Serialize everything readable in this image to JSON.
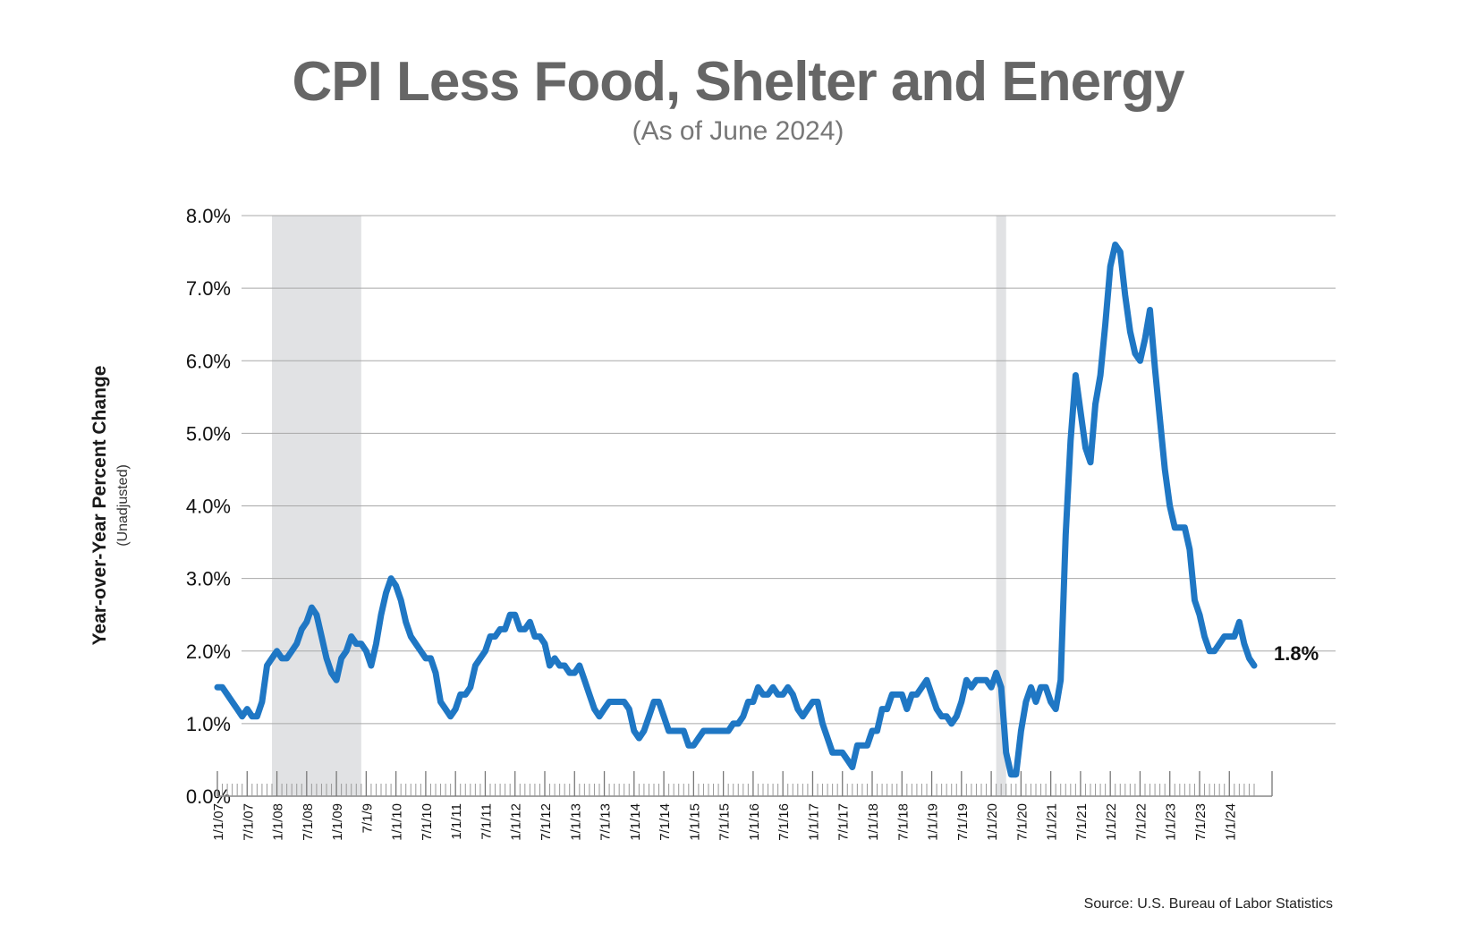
{
  "title": "CPI Less Food, Shelter and Energy",
  "subtitle": "(As of June 2024)",
  "source": "Source: U.S. Bureau of Labor Statistics",
  "colors": {
    "line": "#1f77c4",
    "recession": "#e1e2e4",
    "grid": "#a8a8a8",
    "title": "#666666"
  },
  "chart_data": {
    "type": "line",
    "title": "CPI Less Food, Shelter and Energy",
    "subtitle": "(As of June 2024)",
    "ylabel": "Year-over-Year Percent Change",
    "ylabel_sub": "(Unadjusted)",
    "ylim": [
      0,
      8
    ],
    "yticks": [
      "0.0%",
      "1.0%",
      "2.0%",
      "3.0%",
      "4.0%",
      "5.0%",
      "6.0%",
      "7.0%",
      "8.0%"
    ],
    "xlim": [
      "2007-01",
      "2024-06"
    ],
    "xticks": [
      "1/1/07",
      "7/1/07",
      "1/1/08",
      "7/1/08",
      "1/1/09",
      "7/1/9",
      "1/1/10",
      "7/1/10",
      "1/1/11",
      "7/1/11",
      "1/1/12",
      "7/1/12",
      "1/1/13",
      "7/1/13",
      "1/1/14",
      "7/1/14",
      "1/1/15",
      "7/1/15",
      "1/1/16",
      "7/1/16",
      "1/1/17",
      "7/1/17",
      "1/1/18",
      "7/1/18",
      "1/1/19",
      "7/1/19",
      "1/1/20",
      "7/1/20",
      "1/1/21",
      "7/1/21",
      "1/1/22",
      "7/1/22",
      "1/1/23",
      "7/1/23",
      "1/1/24"
    ],
    "grid": true,
    "recessions": [
      [
        "2007-12",
        "2009-06"
      ],
      [
        "2020-02",
        "2020-04"
      ]
    ],
    "end_label": "1.8%",
    "series": [
      {
        "values": [
          [
            "2007-01",
            1.5
          ],
          [
            "2007-02",
            1.5
          ],
          [
            "2007-03",
            1.4
          ],
          [
            "2007-04",
            1.3
          ],
          [
            "2007-05",
            1.2
          ],
          [
            "2007-06",
            1.1
          ],
          [
            "2007-07",
            1.2
          ],
          [
            "2007-08",
            1.1
          ],
          [
            "2007-09",
            1.1
          ],
          [
            "2007-10",
            1.3
          ],
          [
            "2007-11",
            1.8
          ],
          [
            "2007-12",
            1.9
          ],
          [
            "2008-01",
            2.0
          ],
          [
            "2008-02",
            1.9
          ],
          [
            "2008-03",
            1.9
          ],
          [
            "2008-04",
            2.0
          ],
          [
            "2008-05",
            2.1
          ],
          [
            "2008-06",
            2.3
          ],
          [
            "2008-07",
            2.4
          ],
          [
            "2008-08",
            2.6
          ],
          [
            "2008-09",
            2.5
          ],
          [
            "2008-10",
            2.2
          ],
          [
            "2008-11",
            1.9
          ],
          [
            "2008-12",
            1.7
          ],
          [
            "2009-01",
            1.6
          ],
          [
            "2009-02",
            1.9
          ],
          [
            "2009-03",
            2.0
          ],
          [
            "2009-04",
            2.2
          ],
          [
            "2009-05",
            2.1
          ],
          [
            "2009-06",
            2.1
          ],
          [
            "2009-07",
            2.0
          ],
          [
            "2009-08",
            1.8
          ],
          [
            "2009-09",
            2.1
          ],
          [
            "2009-10",
            2.5
          ],
          [
            "2009-11",
            2.8
          ],
          [
            "2009-12",
            3.0
          ],
          [
            "2010-01",
            2.9
          ],
          [
            "2010-02",
            2.7
          ],
          [
            "2010-03",
            2.4
          ],
          [
            "2010-04",
            2.2
          ],
          [
            "2010-05",
            2.1
          ],
          [
            "2010-06",
            2.0
          ],
          [
            "2010-07",
            1.9
          ],
          [
            "2010-08",
            1.9
          ],
          [
            "2010-09",
            1.7
          ],
          [
            "2010-10",
            1.3
          ],
          [
            "2010-11",
            1.2
          ],
          [
            "2010-12",
            1.1
          ],
          [
            "2011-01",
            1.2
          ],
          [
            "2011-02",
            1.4
          ],
          [
            "2011-03",
            1.4
          ],
          [
            "2011-04",
            1.5
          ],
          [
            "2011-05",
            1.8
          ],
          [
            "2011-06",
            1.9
          ],
          [
            "2011-07",
            2.0
          ],
          [
            "2011-08",
            2.2
          ],
          [
            "2011-09",
            2.2
          ],
          [
            "2011-10",
            2.3
          ],
          [
            "2011-11",
            2.3
          ],
          [
            "2011-12",
            2.5
          ],
          [
            "2012-01",
            2.5
          ],
          [
            "2012-02",
            2.3
          ],
          [
            "2012-03",
            2.3
          ],
          [
            "2012-04",
            2.4
          ],
          [
            "2012-05",
            2.2
          ],
          [
            "2012-06",
            2.2
          ],
          [
            "2012-07",
            2.1
          ],
          [
            "2012-08",
            1.8
          ],
          [
            "2012-09",
            1.9
          ],
          [
            "2012-10",
            1.8
          ],
          [
            "2012-11",
            1.8
          ],
          [
            "2012-12",
            1.7
          ],
          [
            "2013-01",
            1.7
          ],
          [
            "2013-02",
            1.8
          ],
          [
            "2013-03",
            1.6
          ],
          [
            "2013-04",
            1.4
          ],
          [
            "2013-05",
            1.2
          ],
          [
            "2013-06",
            1.1
          ],
          [
            "2013-07",
            1.2
          ],
          [
            "2013-08",
            1.3
          ],
          [
            "2013-09",
            1.3
          ],
          [
            "2013-10",
            1.3
          ],
          [
            "2013-11",
            1.3
          ],
          [
            "2013-12",
            1.2
          ],
          [
            "2014-01",
            0.9
          ],
          [
            "2014-02",
            0.8
          ],
          [
            "2014-03",
            0.9
          ],
          [
            "2014-04",
            1.1
          ],
          [
            "2014-05",
            1.3
          ],
          [
            "2014-06",
            1.3
          ],
          [
            "2014-07",
            1.1
          ],
          [
            "2014-08",
            0.9
          ],
          [
            "2014-09",
            0.9
          ],
          [
            "2014-10",
            0.9
          ],
          [
            "2014-11",
            0.9
          ],
          [
            "2014-12",
            0.7
          ],
          [
            "2015-01",
            0.7
          ],
          [
            "2015-02",
            0.8
          ],
          [
            "2015-03",
            0.9
          ],
          [
            "2015-04",
            0.9
          ],
          [
            "2015-05",
            0.9
          ],
          [
            "2015-06",
            0.9
          ],
          [
            "2015-07",
            0.9
          ],
          [
            "2015-08",
            0.9
          ],
          [
            "2015-09",
            1.0
          ],
          [
            "2015-10",
            1.0
          ],
          [
            "2015-11",
            1.1
          ],
          [
            "2015-12",
            1.3
          ],
          [
            "2016-01",
            1.3
          ],
          [
            "2016-02",
            1.5
          ],
          [
            "2016-03",
            1.4
          ],
          [
            "2016-04",
            1.4
          ],
          [
            "2016-05",
            1.5
          ],
          [
            "2016-06",
            1.4
          ],
          [
            "2016-07",
            1.4
          ],
          [
            "2016-08",
            1.5
          ],
          [
            "2016-09",
            1.4
          ],
          [
            "2016-10",
            1.2
          ],
          [
            "2016-11",
            1.1
          ],
          [
            "2016-12",
            1.2
          ],
          [
            "2017-01",
            1.3
          ],
          [
            "2017-02",
            1.3
          ],
          [
            "2017-03",
            1.0
          ],
          [
            "2017-04",
            0.8
          ],
          [
            "2017-05",
            0.6
          ],
          [
            "2017-06",
            0.6
          ],
          [
            "2017-07",
            0.6
          ],
          [
            "2017-08",
            0.5
          ],
          [
            "2017-09",
            0.4
          ],
          [
            "2017-10",
            0.7
          ],
          [
            "2017-11",
            0.7
          ],
          [
            "2017-12",
            0.7
          ],
          [
            "2018-01",
            0.9
          ],
          [
            "2018-02",
            0.9
          ],
          [
            "2018-03",
            1.2
          ],
          [
            "2018-04",
            1.2
          ],
          [
            "2018-05",
            1.4
          ],
          [
            "2018-06",
            1.4
          ],
          [
            "2018-07",
            1.4
          ],
          [
            "2018-08",
            1.2
          ],
          [
            "2018-09",
            1.4
          ],
          [
            "2018-10",
            1.4
          ],
          [
            "2018-11",
            1.5
          ],
          [
            "2018-12",
            1.6
          ],
          [
            "2019-01",
            1.4
          ],
          [
            "2019-02",
            1.2
          ],
          [
            "2019-03",
            1.1
          ],
          [
            "2019-04",
            1.1
          ],
          [
            "2019-05",
            1.0
          ],
          [
            "2019-06",
            1.1
          ],
          [
            "2019-07",
            1.3
          ],
          [
            "2019-08",
            1.6
          ],
          [
            "2019-09",
            1.5
          ],
          [
            "2019-10",
            1.6
          ],
          [
            "2019-11",
            1.6
          ],
          [
            "2019-12",
            1.6
          ],
          [
            "2020-01",
            1.5
          ],
          [
            "2020-02",
            1.7
          ],
          [
            "2020-03",
            1.5
          ],
          [
            "2020-04",
            0.6
          ],
          [
            "2020-05",
            0.3
          ],
          [
            "2020-06",
            0.3
          ],
          [
            "2020-07",
            0.9
          ],
          [
            "2020-08",
            1.3
          ],
          [
            "2020-09",
            1.5
          ],
          [
            "2020-10",
            1.3
          ],
          [
            "2020-11",
            1.5
          ],
          [
            "2020-12",
            1.5
          ],
          [
            "2021-01",
            1.3
          ],
          [
            "2021-02",
            1.2
          ],
          [
            "2021-03",
            1.6
          ],
          [
            "2021-04",
            3.6
          ],
          [
            "2021-05",
            4.9
          ],
          [
            "2021-06",
            5.8
          ],
          [
            "2021-07",
            5.3
          ],
          [
            "2021-08",
            4.8
          ],
          [
            "2021-09",
            4.6
          ],
          [
            "2021-10",
            5.4
          ],
          [
            "2021-11",
            5.8
          ],
          [
            "2021-12",
            6.5
          ],
          [
            "2022-01",
            7.3
          ],
          [
            "2022-02",
            7.6
          ],
          [
            "2022-03",
            7.5
          ],
          [
            "2022-04",
            6.9
          ],
          [
            "2022-05",
            6.4
          ],
          [
            "2022-06",
            6.1
          ],
          [
            "2022-07",
            6.0
          ],
          [
            "2022-08",
            6.3
          ],
          [
            "2022-09",
            6.7
          ],
          [
            "2022-10",
            5.9
          ],
          [
            "2022-11",
            5.2
          ],
          [
            "2022-12",
            4.5
          ],
          [
            "2023-01",
            4.0
          ],
          [
            "2023-02",
            3.7
          ],
          [
            "2023-03",
            3.7
          ],
          [
            "2023-04",
            3.7
          ],
          [
            "2023-05",
            3.4
          ],
          [
            "2023-06",
            2.7
          ],
          [
            "2023-07",
            2.5
          ],
          [
            "2023-08",
            2.2
          ],
          [
            "2023-09",
            2.0
          ],
          [
            "2023-10",
            2.0
          ],
          [
            "2023-11",
            2.1
          ],
          [
            "2023-12",
            2.2
          ],
          [
            "2024-01",
            2.2
          ],
          [
            "2024-02",
            2.2
          ],
          [
            "2024-03",
            2.4
          ],
          [
            "2024-04",
            2.1
          ],
          [
            "2024-05",
            1.9
          ],
          [
            "2024-06",
            1.8
          ]
        ]
      }
    ]
  }
}
